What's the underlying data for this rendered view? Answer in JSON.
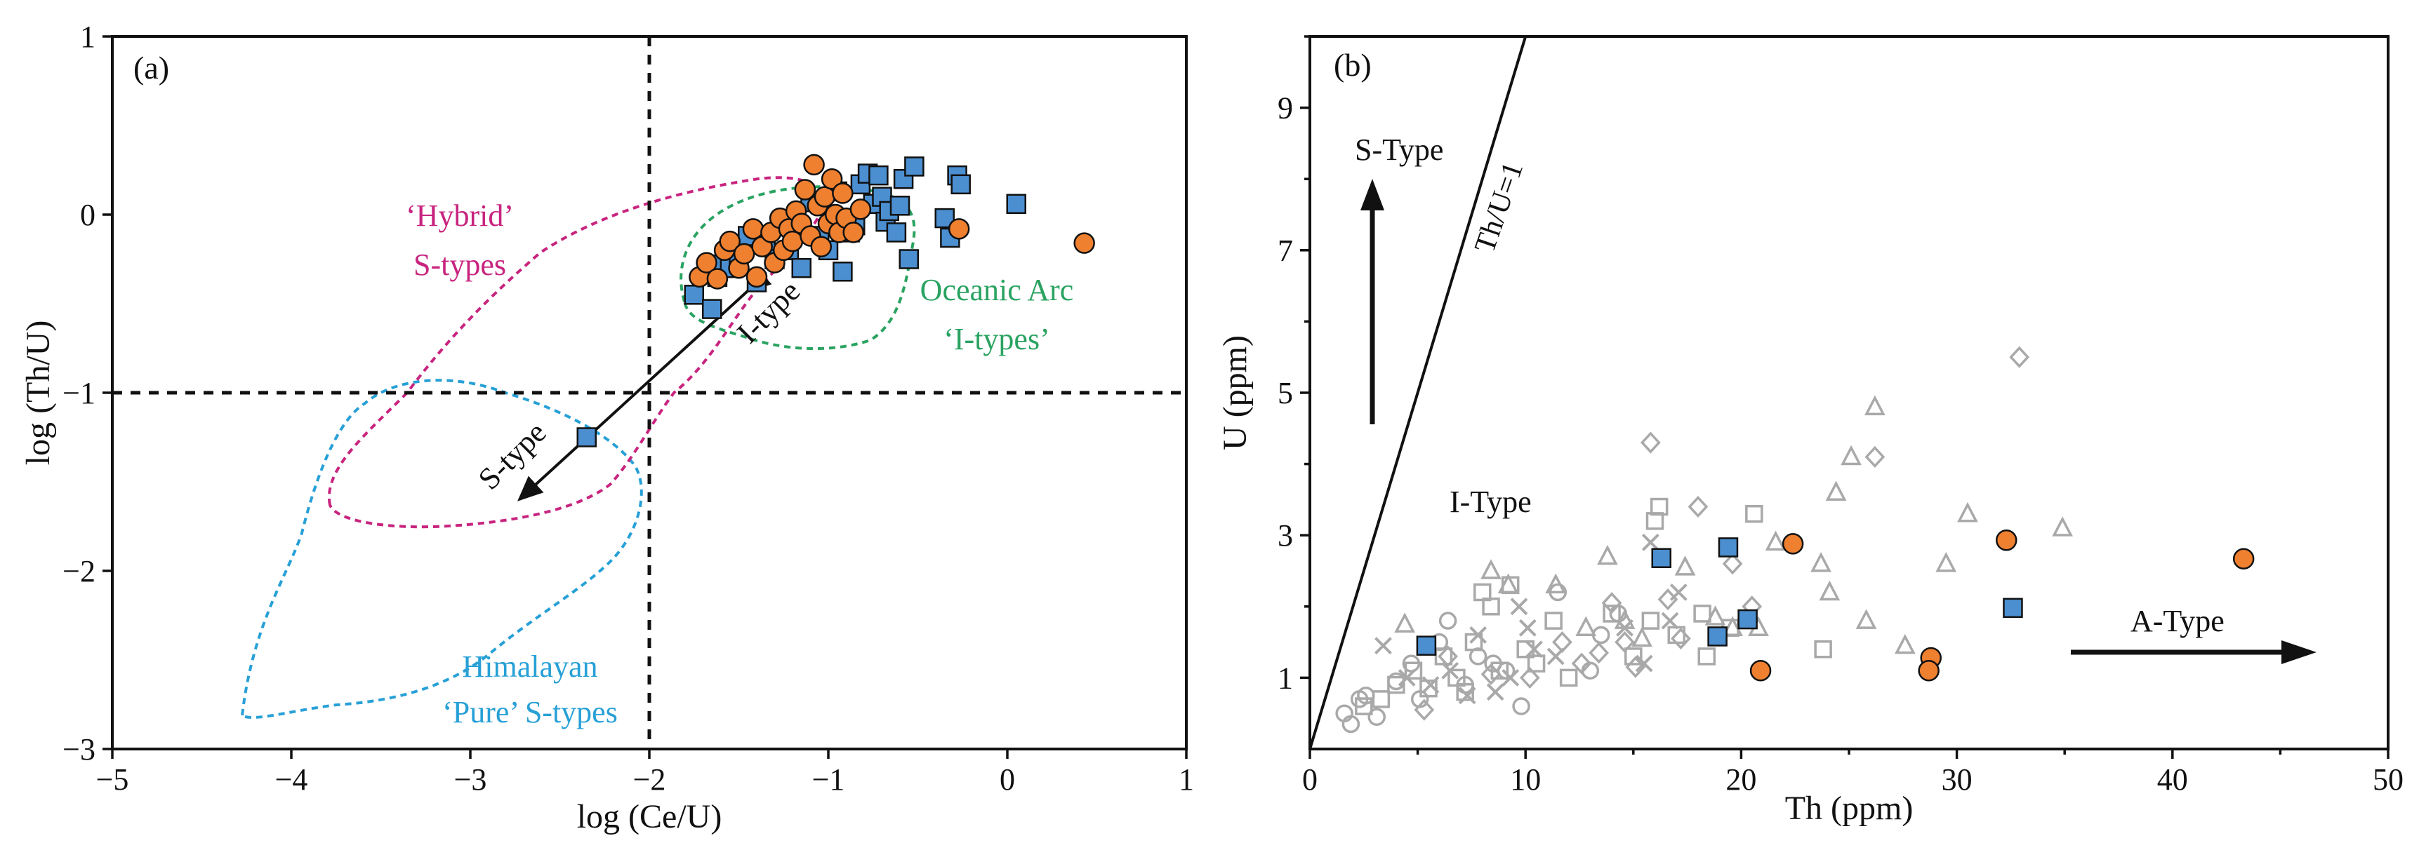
{
  "colors": {
    "blue": "#4b8fd0",
    "orange": "#ee8030",
    "grey": "#a9a9a9",
    "magenta": "#c8247f",
    "green": "#2aa361",
    "cyan": "#27a0d6"
  },
  "chart_data": [
    {
      "type": "scatter",
      "panel_label": "(a)",
      "xlabel": "log (Ce/U)",
      "ylabel": "log (Th/U)",
      "xlim": [
        -5,
        1
      ],
      "ylim": [
        -3,
        1
      ],
      "xticks": [
        -5,
        -4,
        -3,
        -2,
        -1,
        0,
        1
      ],
      "yticks": [
        -3,
        -2,
        -1,
        0,
        1
      ],
      "xtick_labels": [
        "−5",
        "−4",
        "−3",
        "−2",
        "−1",
        "0",
        "1"
      ],
      "ytick_labels": [
        "−3",
        "−2",
        "−1",
        "0",
        "1"
      ],
      "reference_lines": {
        "x": -2,
        "y": -1
      },
      "series": [
        {
          "name": "blue squares",
          "marker": "square",
          "points": [
            [
              -2.35,
              -1.25
            ],
            [
              -1.75,
              -0.45
            ],
            [
              -1.65,
              -0.53
            ],
            [
              -1.62,
              -0.35
            ],
            [
              -1.6,
              -0.28
            ],
            [
              -1.55,
              -0.3
            ],
            [
              -1.5,
              -0.22
            ],
            [
              -1.45,
              -0.12
            ],
            [
              -1.4,
              -0.38
            ],
            [
              -1.35,
              -0.17
            ],
            [
              -1.3,
              -0.25
            ],
            [
              -1.27,
              -0.06
            ],
            [
              -1.22,
              -0.2
            ],
            [
              -1.18,
              -0.1
            ],
            [
              -1.15,
              -0.3
            ],
            [
              -1.1,
              0.07
            ],
            [
              -1.05,
              -0.12
            ],
            [
              -1.0,
              -0.2
            ],
            [
              -0.95,
              0.13
            ],
            [
              -0.92,
              -0.32
            ],
            [
              -0.88,
              -0.1
            ],
            [
              -0.85,
              -0.06
            ],
            [
              -0.82,
              0.17
            ],
            [
              -0.78,
              0.23
            ],
            [
              -0.75,
              0.06
            ],
            [
              -0.72,
              0.22
            ],
            [
              -0.7,
              0.1
            ],
            [
              -0.68,
              -0.04
            ],
            [
              -0.66,
              0.02
            ],
            [
              -0.62,
              -0.1
            ],
            [
              -0.6,
              0.05
            ],
            [
              -0.58,
              0.2
            ],
            [
              -0.55,
              -0.25
            ],
            [
              -0.52,
              0.27
            ],
            [
              -0.35,
              -0.02
            ],
            [
              -0.32,
              -0.13
            ],
            [
              -0.28,
              0.22
            ],
            [
              -0.26,
              0.17
            ],
            [
              0.05,
              0.06
            ]
          ]
        },
        {
          "name": "orange circles",
          "marker": "circle",
          "points": [
            [
              -1.72,
              -0.35
            ],
            [
              -1.68,
              -0.27
            ],
            [
              -1.62,
              -0.36
            ],
            [
              -1.58,
              -0.2
            ],
            [
              -1.55,
              -0.15
            ],
            [
              -1.5,
              -0.3
            ],
            [
              -1.47,
              -0.22
            ],
            [
              -1.42,
              -0.08
            ],
            [
              -1.4,
              -0.35
            ],
            [
              -1.37,
              -0.18
            ],
            [
              -1.32,
              -0.1
            ],
            [
              -1.3,
              -0.27
            ],
            [
              -1.27,
              -0.02
            ],
            [
              -1.25,
              -0.2
            ],
            [
              -1.22,
              -0.08
            ],
            [
              -1.2,
              -0.15
            ],
            [
              -1.18,
              0.02
            ],
            [
              -1.15,
              -0.05
            ],
            [
              -1.13,
              0.14
            ],
            [
              -1.1,
              -0.12
            ],
            [
              -1.08,
              0.28
            ],
            [
              -1.06,
              0.05
            ],
            [
              -1.04,
              -0.18
            ],
            [
              -1.02,
              0.1
            ],
            [
              -1.0,
              -0.05
            ],
            [
              -0.98,
              0.2
            ],
            [
              -0.96,
              0.0
            ],
            [
              -0.94,
              -0.1
            ],
            [
              -0.92,
              0.12
            ],
            [
              -0.9,
              -0.02
            ],
            [
              -0.86,
              -0.1
            ],
            [
              -0.82,
              0.03
            ],
            [
              -0.27,
              -0.08
            ],
            [
              0.43,
              -0.16
            ]
          ]
        }
      ],
      "fields": [
        {
          "name": "'Hybrid' S-types",
          "label_lines": [
            "‘Hybrid’",
            "S-types"
          ],
          "color": "magenta"
        },
        {
          "name": "Oceanic Arc 'I-types'",
          "label_lines": [
            "Oceanic Arc",
            "‘I-types’"
          ],
          "color": "green"
        },
        {
          "name": "Himalayan 'Pure' S-types",
          "label_lines": [
            "Himalayan",
            "‘Pure’ S-types"
          ],
          "color": "cyan"
        }
      ],
      "annotations": [
        "I-type",
        "S-type"
      ]
    },
    {
      "type": "scatter",
      "panel_label": "(b)",
      "xlabel": "Th (ppm)",
      "ylabel": "U (ppm)",
      "xlim": [
        0,
        50
      ],
      "ylim": [
        0,
        10
      ],
      "xticks": [
        0,
        10,
        20,
        30,
        40,
        50
      ],
      "yticks": [
        1,
        3,
        5,
        7,
        9
      ],
      "xtick_labels": [
        "0",
        "10",
        "20",
        "30",
        "40",
        "50"
      ],
      "ytick_labels": [
        "1",
        "3",
        "5",
        "7",
        "9"
      ],
      "reference_line": {
        "label": "Th/U=1",
        "slope": 1
      },
      "region_labels": [
        "S-Type",
        "I-Type",
        "A-Type"
      ],
      "series": [
        {
          "name": "blue squares",
          "marker": "square",
          "points": [
            [
              5.4,
              1.45
            ],
            [
              16.3,
              2.68
            ],
            [
              19.4,
              2.83
            ],
            [
              18.9,
              1.58
            ],
            [
              20.3,
              1.82
            ],
            [
              32.6,
              1.98
            ]
          ]
        },
        {
          "name": "orange circles",
          "marker": "circle",
          "points": [
            [
              22.4,
              2.88
            ],
            [
              20.9,
              1.1
            ],
            [
              28.8,
              1.28
            ],
            [
              28.7,
              1.1
            ],
            [
              32.3,
              2.93
            ],
            [
              43.3,
              2.67
            ]
          ]
        },
        {
          "name": "grey open squares",
          "marker": "open-square",
          "points": [
            [
              2.5,
              0.6
            ],
            [
              3.3,
              0.7
            ],
            [
              4.0,
              0.9
            ],
            [
              4.8,
              1.1
            ],
            [
              5.5,
              0.85
            ],
            [
              6.2,
              1.3
            ],
            [
              6.8,
              1.0
            ],
            [
              7.2,
              0.8
            ],
            [
              7.6,
              1.5
            ],
            [
              8.0,
              2.2
            ],
            [
              8.4,
              2.0
            ],
            [
              8.8,
              1.1
            ],
            [
              9.3,
              2.3
            ],
            [
              10.0,
              1.4
            ],
            [
              10.5,
              1.2
            ],
            [
              11.3,
              1.8
            ],
            [
              12.0,
              1.0
            ],
            [
              14.0,
              1.9
            ],
            [
              15.0,
              1.3
            ],
            [
              15.8,
              1.8
            ],
            [
              16.0,
              3.2
            ],
            [
              16.2,
              3.4
            ],
            [
              17.0,
              1.6
            ],
            [
              18.2,
              1.9
            ],
            [
              18.4,
              1.3
            ],
            [
              19.5,
              1.7
            ],
            [
              20.6,
              3.3
            ],
            [
              23.8,
              1.4
            ]
          ]
        },
        {
          "name": "grey open circles",
          "marker": "open-circle",
          "points": [
            [
              1.6,
              0.5
            ],
            [
              1.9,
              0.35
            ],
            [
              2.3,
              0.7
            ],
            [
              2.6,
              0.75
            ],
            [
              3.1,
              0.45
            ],
            [
              4.0,
              0.95
            ],
            [
              4.7,
              1.2
            ],
            [
              5.1,
              0.7
            ],
            [
              6.0,
              1.5
            ],
            [
              6.4,
              1.8
            ],
            [
              7.2,
              0.9
            ],
            [
              7.8,
              1.3
            ],
            [
              8.5,
              1.2
            ],
            [
              9.1,
              1.1
            ],
            [
              9.8,
              0.6
            ],
            [
              11.5,
              2.2
            ],
            [
              13.0,
              1.1
            ],
            [
              13.5,
              1.6
            ],
            [
              14.3,
              1.9
            ]
          ]
        },
        {
          "name": "grey crosses",
          "marker": "cross",
          "points": [
            [
              3.4,
              1.45
            ],
            [
              4.5,
              1.0
            ],
            [
              5.6,
              0.9
            ],
            [
              6.5,
              1.1
            ],
            [
              7.3,
              0.75
            ],
            [
              7.8,
              1.6
            ],
            [
              8.6,
              0.8
            ],
            [
              9.3,
              1.0
            ],
            [
              9.7,
              2.0
            ],
            [
              10.1,
              1.7
            ],
            [
              10.4,
              1.4
            ],
            [
              11.4,
              1.3
            ],
            [
              14.6,
              1.7
            ],
            [
              15.5,
              1.2
            ],
            [
              15.8,
              2.9
            ],
            [
              16.7,
              1.8
            ],
            [
              17.1,
              2.2
            ]
          ]
        },
        {
          "name": "grey open triangles",
          "marker": "open-triangle",
          "points": [
            [
              4.4,
              1.75
            ],
            [
              8.4,
              2.5
            ],
            [
              9.2,
              2.3
            ],
            [
              11.4,
              2.3
            ],
            [
              12.8,
              1.7
            ],
            [
              13.8,
              2.7
            ],
            [
              14.6,
              1.8
            ],
            [
              15.4,
              1.55
            ],
            [
              17.4,
              2.55
            ],
            [
              18.8,
              1.85
            ],
            [
              19.6,
              1.7
            ],
            [
              20.8,
              1.7
            ],
            [
              21.6,
              2.9
            ],
            [
              23.7,
              2.6
            ],
            [
              24.1,
              2.2
            ],
            [
              24.4,
              3.6
            ],
            [
              25.1,
              4.1
            ],
            [
              26.2,
              4.8
            ],
            [
              25.8,
              1.8
            ],
            [
              27.6,
              1.45
            ],
            [
              29.5,
              2.6
            ],
            [
              30.5,
              3.3
            ],
            [
              34.9,
              3.1
            ]
          ]
        },
        {
          "name": "grey open diamonds",
          "marker": "open-diamond",
          "points": [
            [
              5.3,
              0.55
            ],
            [
              6.4,
              1.3
            ],
            [
              8.4,
              1.05
            ],
            [
              10.2,
              1.0
            ],
            [
              11.7,
              1.5
            ],
            [
              12.6,
              1.2
            ],
            [
              13.4,
              1.35
            ],
            [
              14.0,
              2.05
            ],
            [
              14.6,
              1.5
            ],
            [
              15.1,
              1.15
            ],
            [
              15.8,
              4.3
            ],
            [
              16.6,
              2.1
            ],
            [
              17.2,
              1.55
            ],
            [
              18.0,
              3.4
            ],
            [
              19.6,
              2.6
            ],
            [
              20.5,
              2.0
            ],
            [
              26.2,
              4.1
            ],
            [
              32.9,
              5.5
            ]
          ]
        }
      ]
    }
  ]
}
